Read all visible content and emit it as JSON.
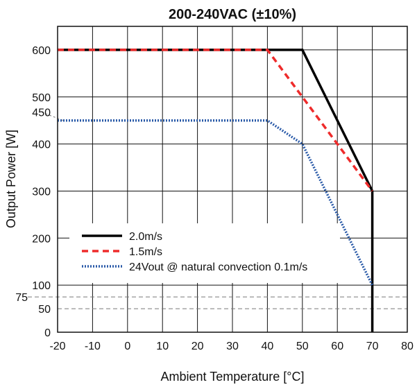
{
  "chart_data": {
    "type": "line",
    "title": "200-240VAC (±10%)",
    "xlabel": "Ambient Temperature [°C]",
    "ylabel": "Output Power [W]",
    "xlim": [
      -20,
      80
    ],
    "ylim": [
      0,
      650
    ],
    "x_ticks": [
      -20,
      -10,
      0,
      10,
      20,
      30,
      40,
      50,
      60,
      70,
      80
    ],
    "y_ticks": [
      0,
      50,
      100,
      200,
      300,
      400,
      500,
      600
    ],
    "y_extra_ticks": [
      75,
      450
    ],
    "grid": true,
    "reference_lines": [
      75,
      50
    ],
    "legend_position": "bottom-left",
    "series": [
      {
        "name": "2.0m/s",
        "color": "#000000",
        "style": "solid",
        "points": [
          [
            -20,
            600
          ],
          [
            50,
            600
          ],
          [
            70,
            300
          ],
          [
            70,
            0
          ]
        ]
      },
      {
        "name": "1.5m/s",
        "color": "#ee2b2b",
        "style": "dashed",
        "points": [
          [
            -20,
            600
          ],
          [
            40,
            600
          ],
          [
            70,
            300
          ]
        ]
      },
      {
        "name": "24Vout  @ natural convection 0.1m/s",
        "color": "#2a5aa8",
        "style": "dotted",
        "points": [
          [
            -20,
            450
          ],
          [
            40,
            450
          ],
          [
            50,
            400
          ],
          [
            70,
            100
          ]
        ]
      }
    ]
  }
}
